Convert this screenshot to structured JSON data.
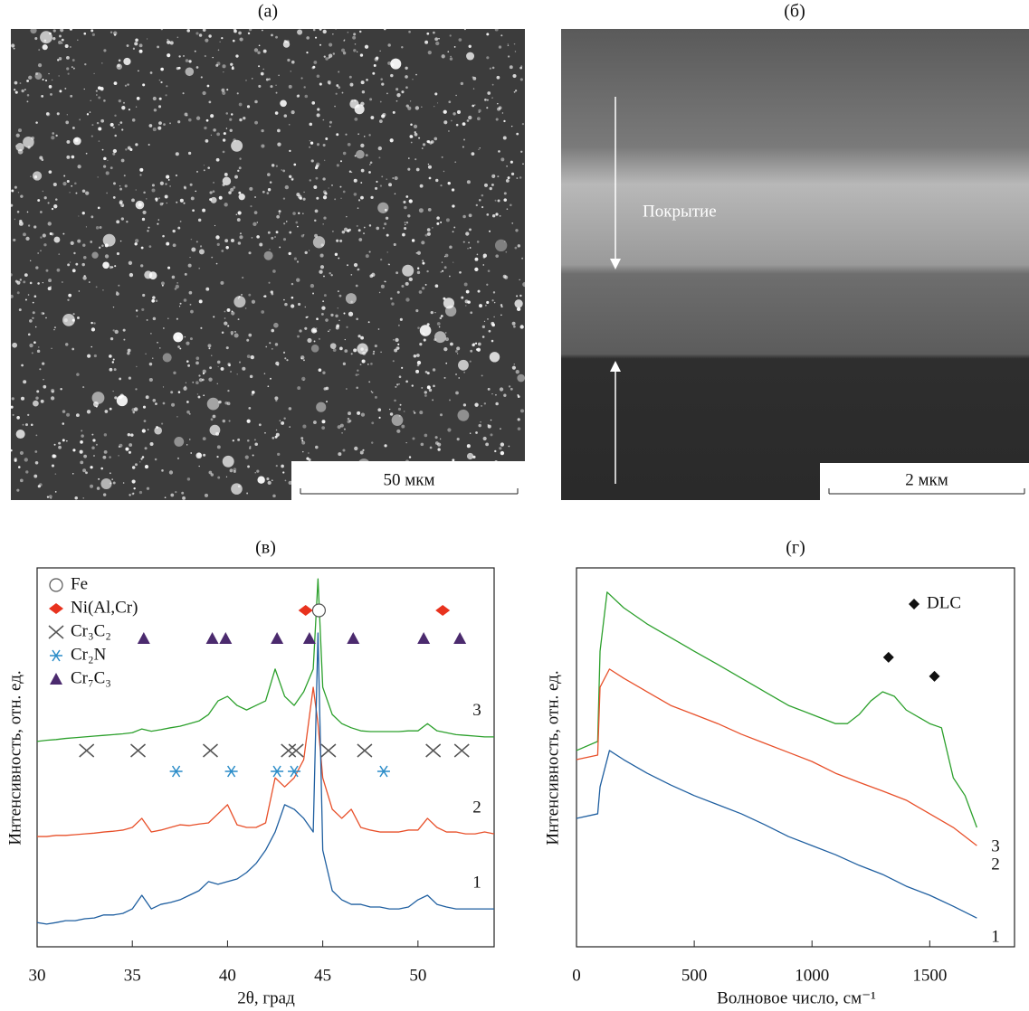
{
  "images": [
    {
      "label": "(а)",
      "scale_bar": "50 мкм"
    },
    {
      "label": "(б)",
      "scale_bar": "2 мкм",
      "annotation": "Покрытие"
    }
  ],
  "chart_data": [
    {
      "type": "line",
      "label": "(в)",
      "xlabel": "2θ, град",
      "ylabel": "Интенсивность, отн. ед.",
      "xlim": [
        30,
        54
      ],
      "ylim": [
        0,
        100
      ],
      "xticks": [
        30,
        35,
        40,
        45,
        50
      ],
      "x": [
        30,
        30.5,
        31,
        31.5,
        32,
        32.5,
        33,
        33.5,
        34,
        34.5,
        35,
        35.5,
        36,
        36.5,
        37,
        37.5,
        38,
        38.5,
        39,
        39.5,
        40,
        40.5,
        41,
        41.5,
        42,
        42.5,
        43,
        43.5,
        44,
        44.5,
        44.75,
        45,
        45.5,
        46,
        46.5,
        47,
        47.5,
        48,
        48.5,
        49,
        49.5,
        50,
        50.5,
        51,
        51.5,
        52,
        52.5,
        53,
        53.5,
        54
      ],
      "series": [
        {
          "name": "3",
          "color": "#2ca02c",
          "values": [
            54.2,
            54.5,
            54.7,
            55,
            55.2,
            55.4,
            55.6,
            55.8,
            56,
            56.2,
            56.5,
            57.5,
            56.9,
            57.3,
            57.8,
            58.2,
            58.9,
            59.6,
            61.3,
            64.9,
            66.1,
            63.7,
            62.5,
            63.7,
            64.9,
            73.3,
            66.1,
            63.7,
            67.3,
            73.3,
            97.1,
            68.5,
            61.3,
            58.9,
            57.8,
            57,
            56.8,
            56.8,
            56.8,
            56.8,
            57,
            57,
            58.9,
            57,
            56.5,
            56,
            55.8,
            55.6,
            55.4,
            55.4
          ]
        },
        {
          "name": "2",
          "color": "#e8502a",
          "values": [
            29.1,
            29.1,
            29.4,
            29.4,
            29.6,
            29.8,
            30,
            30.3,
            30.5,
            30.8,
            31.5,
            33.9,
            30.3,
            30.8,
            31.5,
            32.2,
            32,
            32.4,
            32.7,
            35.1,
            37.5,
            32.2,
            31.5,
            31.5,
            32.7,
            44.6,
            42.2,
            44.6,
            49.4,
            68.5,
            58.9,
            44.6,
            36.3,
            33.9,
            36.3,
            31.5,
            30.8,
            30.3,
            30.3,
            30.3,
            30.8,
            30.8,
            33.9,
            31.5,
            30.3,
            30.3,
            29.8,
            29.8,
            30.3,
            29.8
          ]
        },
        {
          "name": "1",
          "color": "#1f5fa0",
          "values": [
            6.4,
            6,
            6.4,
            6.9,
            6.9,
            7.4,
            7.6,
            8.4,
            8.4,
            8.8,
            10,
            13.6,
            10,
            11.2,
            11.7,
            12.4,
            13.6,
            14.8,
            17.2,
            16.5,
            17.2,
            17.9,
            19.6,
            22,
            25.5,
            30.3,
            37.5,
            36.3,
            33.9,
            30.3,
            82.8,
            25.5,
            14.8,
            12.4,
            11.2,
            11.2,
            10.5,
            10.5,
            10,
            10,
            10.5,
            12.4,
            13.6,
            11.2,
            10.5,
            10,
            10,
            10,
            10,
            10
          ]
        }
      ],
      "phases": [
        {
          "name": "Fe",
          "marker": "circle",
          "color": "#ffffff",
          "x": [
            44.8
          ]
        },
        {
          "name": "Ni(Al,Cr)",
          "marker": "diamond",
          "color": "#e8321e",
          "x": [
            44.1,
            51.3
          ]
        },
        {
          "name": "Cr₃C₂",
          "marker": "x",
          "color": "#555555",
          "x": [
            32.6,
            35.3,
            39.1,
            43.2,
            43.6,
            45.3,
            47.2,
            50.8,
            52.3
          ]
        },
        {
          "name": "Cr₂N",
          "marker": "asterisk",
          "color": "#2a8cc8",
          "x": [
            37.3,
            40.2,
            42.6,
            43.5,
            48.2
          ]
        },
        {
          "name": "Cr₇C₃",
          "marker": "triangle",
          "color": "#4b2a6e",
          "x": [
            35.6,
            39.2,
            39.9,
            42.6,
            44.3,
            46.6,
            50.3,
            52.2
          ]
        }
      ]
    },
    {
      "type": "line",
      "label": "(г)",
      "xlabel": "Волновое число, см⁻¹",
      "ylabel": "Интенсивность, отн. ед.",
      "xlim": [
        0,
        1860
      ],
      "ylim": [
        0,
        100
      ],
      "xticks": [
        0,
        500,
        1000,
        1500
      ],
      "series": [
        {
          "name": "3",
          "color": "#2ca02c",
          "x": [
            0,
            90,
            100,
            130,
            200,
            300,
            400,
            500,
            600,
            700,
            800,
            900,
            1000,
            1100,
            1150,
            1200,
            1250,
            1300,
            1350,
            1400,
            1500,
            1550,
            1600,
            1650,
            1700
          ],
          "values": [
            51.8,
            54.2,
            78,
            93.6,
            89.5,
            85.2,
            81.6,
            78,
            74.5,
            70.9,
            67.3,
            63.7,
            61.3,
            58.9,
            58.9,
            61.3,
            64.9,
            67.3,
            66.1,
            62.5,
            58.9,
            57.8,
            44.6,
            39.9,
            31.5
          ]
        },
        {
          "name": "2",
          "color": "#e8502a",
          "x": [
            0,
            90,
            100,
            140,
            200,
            300,
            400,
            500,
            600,
            700,
            800,
            900,
            1000,
            1100,
            1200,
            1300,
            1400,
            1500,
            1600,
            1700
          ],
          "values": [
            49.4,
            50.6,
            68.5,
            73.3,
            70.9,
            67.3,
            63.7,
            61.3,
            58.9,
            56.1,
            53.7,
            51.3,
            48.9,
            45.8,
            43.4,
            41.1,
            38.7,
            35.1,
            31.5,
            26.7
          ]
        },
        {
          "name": "1",
          "color": "#1f5fa0",
          "x": [
            0,
            90,
            100,
            140,
            200,
            300,
            400,
            500,
            600,
            700,
            800,
            900,
            1000,
            1100,
            1200,
            1300,
            1400,
            1500,
            1600,
            1700
          ],
          "values": [
            33.9,
            35.1,
            42.2,
            51.8,
            49.4,
            45.8,
            42.7,
            39.9,
            37.5,
            35.1,
            32.2,
            29.1,
            26.7,
            24.3,
            21.5,
            19.1,
            16,
            13.6,
            10.7,
            7.6
          ]
        }
      ],
      "markers": {
        "name": "DLC",
        "x": [
          1325,
          1520
        ],
        "values": [
          76.4,
          71.4
        ]
      }
    }
  ]
}
